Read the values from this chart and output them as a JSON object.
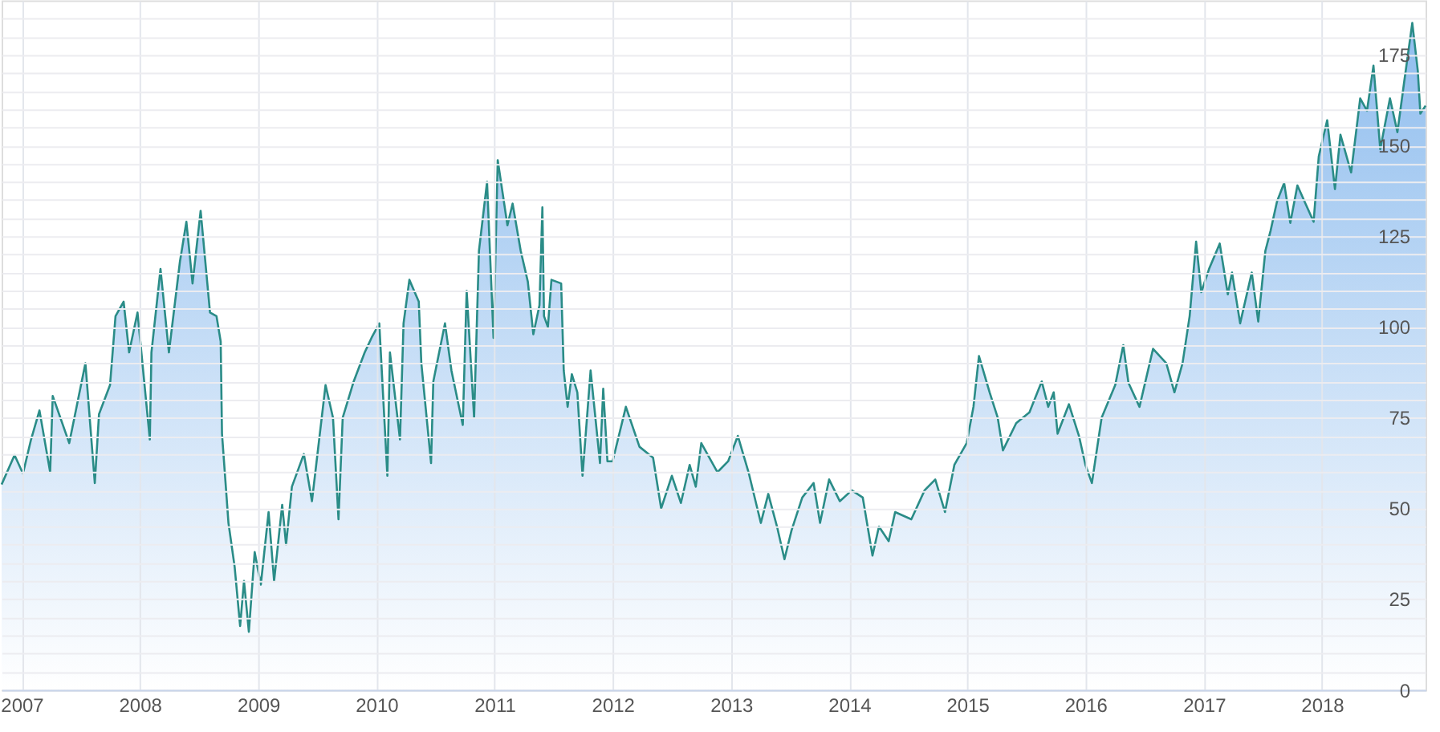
{
  "chart_data": {
    "type": "area",
    "x": [
      "2006-10-31",
      "2006-12-10",
      "2007-01-05",
      "2007-01-30",
      "2007-02-25",
      "2007-03-30",
      "2007-04-07",
      "2007-05-28",
      "2007-06-22",
      "2007-07-17",
      "2007-08-15",
      "2007-08-28",
      "2007-10-01",
      "2007-10-18",
      "2007-11-12",
      "2007-11-29",
      "2007-12-25",
      "2008-02-01",
      "2008-02-06",
      "2008-03-05",
      "2008-03-31",
      "2008-05-04",
      "2008-05-24",
      "2008-06-12",
      "2008-07-07",
      "2008-08-05",
      "2008-08-25",
      "2008-09-07",
      "2008-09-11",
      "2008-10-01",
      "2008-10-20",
      "2008-11-06",
      "2008-11-18",
      "2008-12-03",
      "2008-12-21",
      "2009-01-09",
      "2009-02-02",
      "2009-02-19",
      "2009-03-16",
      "2009-03-28",
      "2009-04-15",
      "2009-05-22",
      "2009-06-16",
      "2009-07-03",
      "2009-07-28",
      "2009-08-20",
      "2009-09-06",
      "2009-09-19",
      "2009-10-23",
      "2009-11-26",
      "2009-12-17",
      "2010-01-10",
      "2010-02-04",
      "2010-02-12",
      "2010-03-15",
      "2010-03-26",
      "2010-04-13",
      "2010-05-12",
      "2010-05-20",
      "2010-06-19",
      "2010-06-26",
      "2010-08-01",
      "2010-08-21",
      "2010-09-25",
      "2010-10-07",
      "2010-10-30",
      "2010-11-14",
      "2010-12-09",
      "2010-12-29",
      "2011-01-11",
      "2011-02-10",
      "2011-02-26",
      "2011-03-23",
      "2011-04-14",
      "2011-05-01",
      "2011-05-20",
      "2011-05-29",
      "2011-06-03",
      "2011-06-15",
      "2011-06-26",
      "2011-07-26",
      "2011-08-03",
      "2011-08-15",
      "2011-08-28",
      "2011-09-14",
      "2011-09-30",
      "2011-10-25",
      "2011-11-23",
      "2011-12-03",
      "2011-12-16",
      "2012-01-01",
      "2012-02-11",
      "2012-03-24",
      "2012-05-05",
      "2012-05-30",
      "2012-07-02",
      "2012-07-30",
      "2012-08-26",
      "2012-09-14",
      "2012-10-01",
      "2012-11-20",
      "2012-12-23",
      "2013-01-22",
      "2013-02-24",
      "2013-04-03",
      "2013-04-26",
      "2013-05-23",
      "2013-06-15",
      "2013-07-07",
      "2013-08-09",
      "2013-09-13",
      "2013-10-03",
      "2013-10-31",
      "2013-12-03",
      "2014-01-09",
      "2014-02-12",
      "2014-03-14",
      "2014-04-03",
      "2014-05-03",
      "2014-05-23",
      "2014-07-12",
      "2014-08-22",
      "2014-09-24",
      "2014-10-24",
      "2014-11-22",
      "2014-12-30",
      "2015-01-20",
      "2015-02-06",
      "2015-03-11",
      "2015-04-05",
      "2015-04-21",
      "2015-06-01",
      "2015-07-12",
      "2015-08-19",
      "2015-09-08",
      "2015-09-25",
      "2015-10-07",
      "2015-11-11",
      "2015-12-12",
      "2016-01-01",
      "2016-01-21",
      "2016-02-20",
      "2016-04-02",
      "2016-04-27",
      "2016-05-13",
      "2016-06-16",
      "2016-07-28",
      "2016-09-07",
      "2016-10-02",
      "2016-10-27",
      "2016-11-18",
      "2016-12-08",
      "2016-12-24",
      "2017-01-17",
      "2017-02-19",
      "2017-03-16",
      "2017-03-29",
      "2017-04-23",
      "2017-05-29",
      "2017-06-18",
      "2017-07-10",
      "2017-07-26",
      "2017-08-15",
      "2017-09-06",
      "2017-09-25",
      "2017-10-17",
      "2017-11-11",
      "2017-12-06",
      "2017-12-22",
      "2018-01-17",
      "2018-02-10",
      "2018-02-27",
      "2018-04-01",
      "2018-04-29",
      "2018-05-20",
      "2018-06-09",
      "2018-06-30",
      "2018-07-30",
      "2018-08-22",
      "2018-09-12",
      "2018-10-07",
      "2018-10-24",
      "2018-11-01",
      "2018-11-17"
    ],
    "series": [
      {
        "color": "#2a8c87",
        "values": [
          56.6,
          64.7,
          59.6,
          69,
          77,
          60,
          81,
          68,
          79,
          90,
          57,
          76,
          84,
          103,
          107,
          93,
          104,
          69,
          93,
          116,
          93,
          118,
          129,
          112,
          132,
          104,
          103,
          96,
          70.6,
          46,
          34,
          17.6,
          30,
          16,
          38,
          29,
          49,
          30,
          51,
          40,
          56,
          65,
          52,
          65,
          84,
          75,
          47,
          75,
          85,
          93,
          97,
          101,
          59,
          93,
          69,
          101,
          113,
          107,
          90,
          62.5,
          85,
          101,
          88,
          73,
          110,
          75,
          121,
          140,
          97,
          146,
          128,
          134,
          121,
          112.5,
          98,
          106,
          133,
          103,
          100,
          113,
          112,
          88,
          78,
          87,
          82,
          59,
          88,
          62.5,
          83,
          63,
          63,
          78,
          67,
          64,
          50,
          59,
          51.5,
          62,
          56,
          68,
          60,
          63,
          70,
          60,
          46,
          54,
          45,
          36,
          44,
          53,
          57,
          46,
          58,
          52,
          55,
          53,
          37,
          45,
          41,
          49,
          47,
          55,
          58,
          49,
          62,
          68,
          78,
          92,
          82,
          75,
          66,
          73.5,
          76.5,
          85,
          78,
          82,
          70.6,
          78.7,
          70,
          62,
          57,
          75,
          84,
          95,
          84.6,
          78,
          94,
          90,
          82,
          90,
          103,
          123.5,
          109.6,
          116,
          123,
          109,
          115,
          101,
          115,
          101.5,
          121,
          126.5,
          134.6,
          139.7,
          128.7,
          139,
          134,
          129,
          147,
          157,
          138,
          153,
          142.6,
          163,
          159.6,
          172,
          149,
          163,
          153.7,
          167.6,
          183.8,
          170.6,
          158.8,
          161
        ]
      }
    ],
    "xlim": [
      "2006-10-31",
      "2018-11-17"
    ],
    "xticks": [
      {
        "value": "2007-01-01",
        "label": "2007"
      },
      {
        "value": "2008-01-01",
        "label": "2008"
      },
      {
        "value": "2009-01-01",
        "label": "2009"
      },
      {
        "value": "2010-01-01",
        "label": "2010"
      },
      {
        "value": "2011-01-01",
        "label": "2011"
      },
      {
        "value": "2012-01-01",
        "label": "2012"
      },
      {
        "value": "2013-01-01",
        "label": "2013"
      },
      {
        "value": "2014-01-01",
        "label": "2014"
      },
      {
        "value": "2015-01-01",
        "label": "2015"
      },
      {
        "value": "2016-01-01",
        "label": "2016"
      },
      {
        "value": "2017-01-01",
        "label": "2017"
      },
      {
        "value": "2018-01-01",
        "label": "2018"
      }
    ],
    "ylim": [
      0,
      190
    ],
    "yticks": [
      0,
      {
        "value": 5,
        "label": null
      },
      {
        "value": 10,
        "label": null
      },
      {
        "value": 15,
        "label": null
      },
      {
        "value": 20,
        "label": null
      },
      25,
      {
        "value": 30,
        "label": null
      },
      {
        "value": 35,
        "label": null
      },
      {
        "value": 40,
        "label": null
      },
      {
        "value": 45,
        "label": null
      },
      50,
      {
        "value": 55,
        "label": null
      },
      {
        "value": 60,
        "label": null
      },
      {
        "value": 65,
        "label": null
      },
      {
        "value": 70,
        "label": null
      },
      75,
      {
        "value": 80,
        "label": null
      },
      {
        "value": 85,
        "label": null
      },
      {
        "value": 90,
        "label": null
      },
      {
        "value": 95,
        "label": null
      },
      100,
      {
        "value": 105,
        "label": null
      },
      {
        "value": 110,
        "label": null
      },
      {
        "value": 115,
        "label": null
      },
      {
        "value": 120,
        "label": null
      },
      125,
      {
        "value": 130,
        "label": null
      },
      {
        "value": 135,
        "label": null
      },
      {
        "value": 140,
        "label": null
      },
      {
        "value": 145,
        "label": null
      },
      150,
      {
        "value": 155,
        "label": null
      },
      {
        "value": 160,
        "label": null
      },
      {
        "value": 165,
        "label": null
      },
      {
        "value": 170,
        "label": null
      },
      175,
      {
        "value": 180,
        "label": null
      },
      {
        "value": 185,
        "label": null
      }
    ],
    "grid": true
  }
}
